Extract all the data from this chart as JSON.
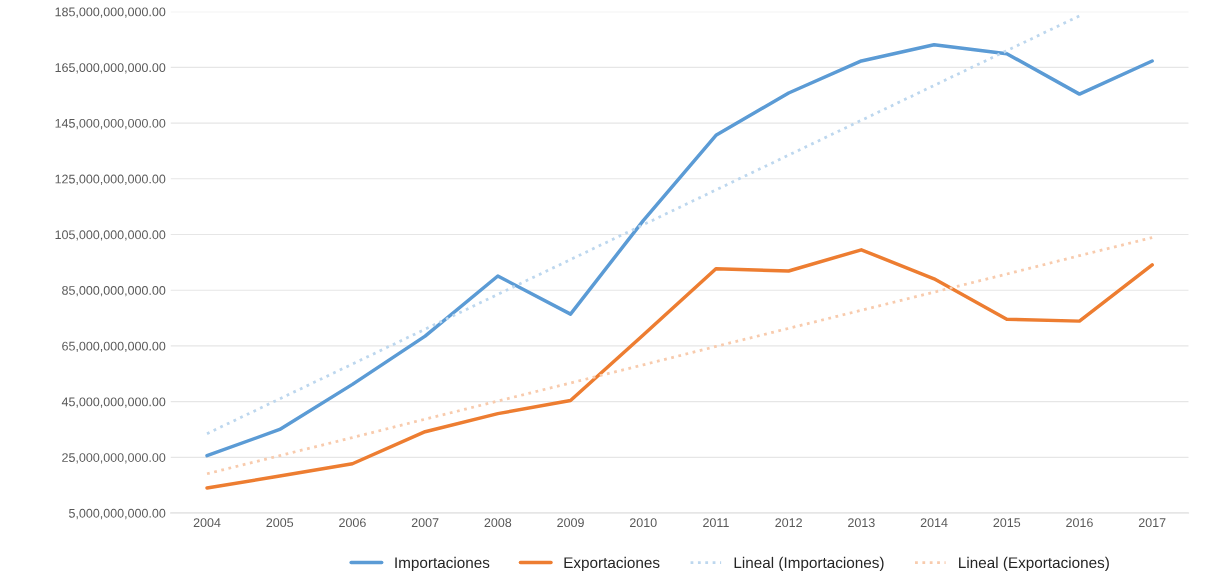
{
  "chart_data": {
    "type": "line",
    "categories": [
      "2004",
      "2005",
      "2006",
      "2007",
      "2008",
      "2009",
      "2010",
      "2011",
      "2012",
      "2013",
      "2014",
      "2015",
      "2016",
      "2017"
    ],
    "series": [
      {
        "name": "Importaciones",
        "color": "#5b9bd5",
        "values": [
          25600000000,
          35000000000,
          51200000000,
          68500000000,
          90100000000,
          76400000000,
          110000000000,
          140600000000,
          155800000000,
          167300000000,
          173100000000,
          169900000000,
          155400000000,
          167300000000
        ]
      },
      {
        "name": "Exportaciones",
        "color": "#ed7d31",
        "values": [
          14000000000,
          18300000000,
          22700000000,
          34200000000,
          40700000000,
          45400000000,
          68900000000,
          92700000000,
          91900000000,
          99500000000,
          89100000000,
          74600000000,
          73900000000,
          94100000000
        ]
      },
      {
        "name": "Lineal (Importaciones)",
        "color": "#bdd7ee",
        "line_style": "dotted",
        "values": [
          33500000000,
          46000000000,
          58500000000,
          71000000000,
          83500000000,
          96000000000,
          108500000000,
          121000000000,
          133500000000,
          146000000000,
          158500000000,
          171000000000,
          183500000000,
          null
        ]
      },
      {
        "name": "Lineal (Exportaciones)",
        "color": "#f8cbad",
        "line_style": "dotted",
        "values": [
          19100000000,
          25600000000,
          32100000000,
          38700000000,
          45200000000,
          51700000000,
          58200000000,
          64800000000,
          71300000000,
          77800000000,
          84300000000,
          90800000000,
          97400000000,
          103900000000
        ]
      }
    ],
    "ylim": [
      5000000000,
      185000000000
    ],
    "yticks": [
      {
        "value": 5000000000,
        "label": "5,000,000,000.00"
      },
      {
        "value": 25000000000,
        "label": "25,000,000,000.00"
      },
      {
        "value": 45000000000,
        "label": "45,000,000,000.00"
      },
      {
        "value": 65000000000,
        "label": "65,000,000,000.00"
      },
      {
        "value": 85000000000,
        "label": "85,000,000,000.00"
      },
      {
        "value": 105000000000,
        "label": "105,000,000,000.00"
      },
      {
        "value": 125000000000,
        "label": "125,000,000,000.00"
      },
      {
        "value": 145000000000,
        "label": "145,000,000,000.00"
      },
      {
        "value": 165000000000,
        "label": "165,000,000,000.00"
      },
      {
        "value": 185000000000,
        "label": "185,000,000,000.00"
      }
    ],
    "grid": "y",
    "legend": "bottom",
    "line_style": "solid",
    "marker": "none"
  }
}
